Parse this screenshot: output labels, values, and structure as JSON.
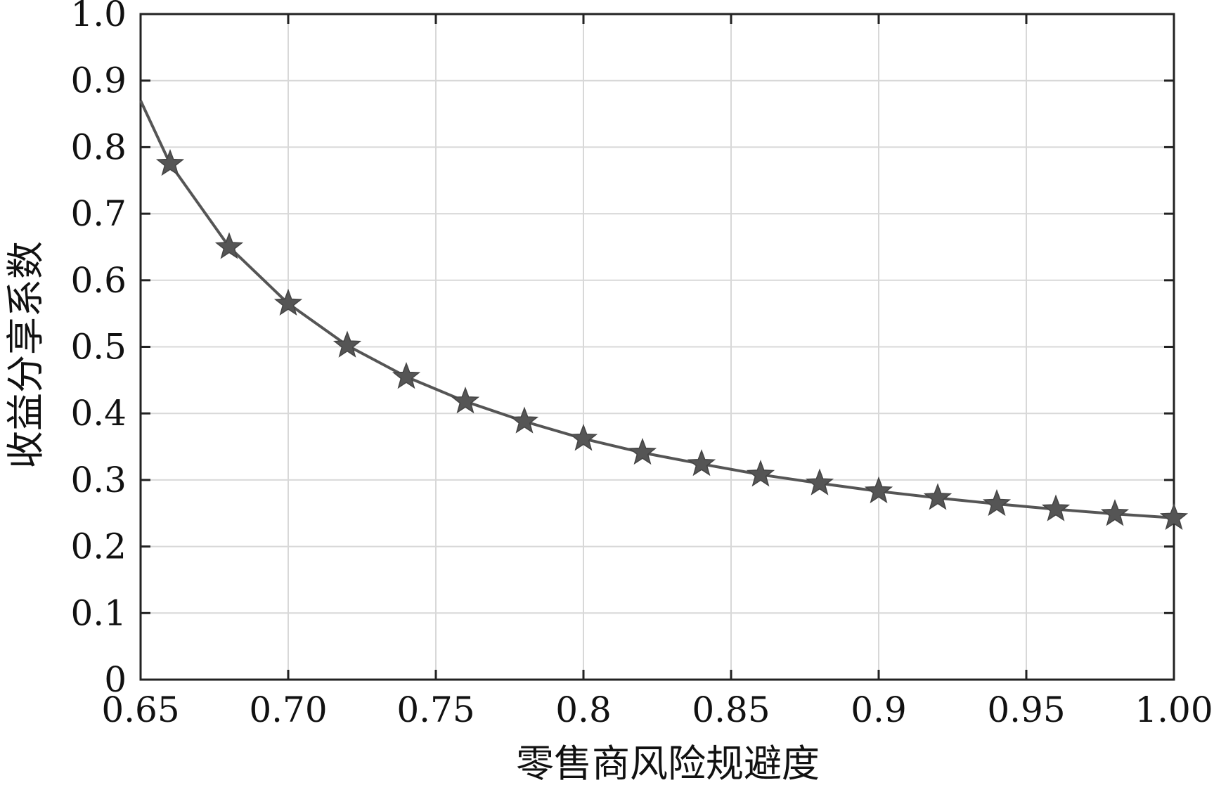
{
  "chart_data": {
    "type": "line",
    "title": "",
    "xlabel": "零售商风险规避度",
    "ylabel": "收益分享系数",
    "xlim": [
      0.65,
      1.0
    ],
    "ylim": [
      0,
      1.0
    ],
    "grid": true,
    "x_ticks": [
      0.65,
      0.7,
      0.75,
      0.8,
      0.85,
      0.9,
      0.95,
      1.0
    ],
    "x_tick_labels": [
      "0.65",
      "0.70",
      "0.75",
      "0.8",
      "0.85",
      "0.9",
      "0.95",
      "1.00"
    ],
    "y_ticks": [
      0,
      0.1,
      0.2,
      0.3,
      0.4,
      0.5,
      0.6,
      0.7,
      0.8,
      0.9,
      1.0
    ],
    "y_tick_labels": [
      "0",
      "0.1",
      "0.2",
      "0.3",
      "0.4",
      "0.5",
      "0.6",
      "0.7",
      "0.8",
      "0.9",
      "1.0"
    ],
    "line_color": "#555555",
    "marker": "star",
    "series": [
      {
        "x": [
          0.65,
          0.66,
          0.68,
          0.7,
          0.72,
          0.74,
          0.76,
          0.78,
          0.8,
          0.82,
          0.84,
          0.86,
          0.88,
          0.9,
          0.92,
          0.94,
          0.96,
          0.98,
          1.0
        ],
        "y": [
          0.87,
          0.775,
          0.65,
          0.565,
          0.502,
          0.455,
          0.418,
          0.388,
          0.362,
          0.341,
          0.324,
          0.308,
          0.295,
          0.283,
          0.273,
          0.264,
          0.256,
          0.249,
          0.243
        ],
        "marker_x": [
          0.66,
          0.68,
          0.7,
          0.72,
          0.74,
          0.76,
          0.78,
          0.8,
          0.82,
          0.84,
          0.86,
          0.88,
          0.9,
          0.92,
          0.94,
          0.96,
          0.98,
          1.0
        ],
        "marker_y": [
          0.775,
          0.65,
          0.565,
          0.502,
          0.455,
          0.418,
          0.388,
          0.362,
          0.341,
          0.324,
          0.308,
          0.295,
          0.283,
          0.273,
          0.264,
          0.256,
          0.249,
          0.243
        ]
      }
    ]
  }
}
